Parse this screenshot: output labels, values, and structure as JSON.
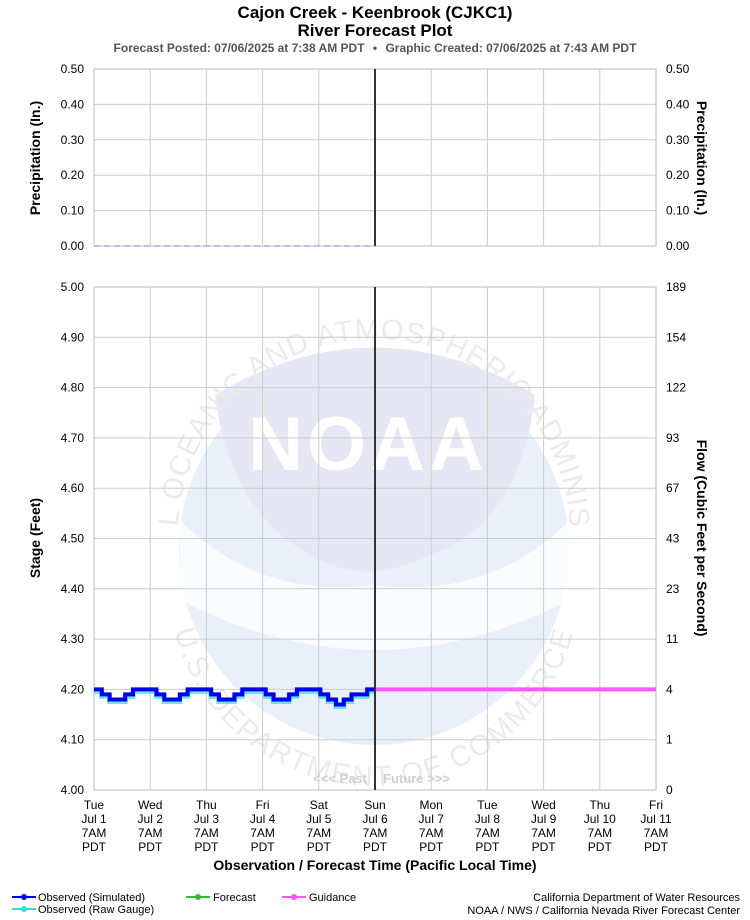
{
  "header": {
    "title": "Cajon Creek - Keenbrook (CJKC1)",
    "subtitle": "River Forecast Plot",
    "posted": "Forecast Posted: 07/06/2025 at 7:38 AM PDT",
    "separator": "•",
    "created": "Graphic Created: 07/06/2025 at 7:43 AM PDT"
  },
  "watermark": {
    "logo_text": "NOAA",
    "ring_top": "NATIONAL OCEANIC AND ATMOSPHERIC ADMINISTRATION",
    "ring_bottom": "U.S. DEPARTMENT OF COMMERCE"
  },
  "markers": {
    "past": "<<< Past",
    "future": "Future >>>"
  },
  "x_axis": {
    "label": "Observation / Forecast Time (Pacific Local Time)",
    "ticks": [
      {
        "day": "Tue",
        "date": "Jul 1",
        "time": "7AM",
        "tz": "PDT"
      },
      {
        "day": "Wed",
        "date": "Jul 2",
        "time": "7AM",
        "tz": "PDT"
      },
      {
        "day": "Thu",
        "date": "Jul 3",
        "time": "7AM",
        "tz": "PDT"
      },
      {
        "day": "Fri",
        "date": "Jul 4",
        "time": "7AM",
        "tz": "PDT"
      },
      {
        "day": "Sat",
        "date": "Jul 5",
        "time": "7AM",
        "tz": "PDT"
      },
      {
        "day": "Sun",
        "date": "Jul 6",
        "time": "7AM",
        "tz": "PDT"
      },
      {
        "day": "Mon",
        "date": "Jul 7",
        "time": "7AM",
        "tz": "PDT"
      },
      {
        "day": "Tue",
        "date": "Jul 8",
        "time": "7AM",
        "tz": "PDT"
      },
      {
        "day": "Wed",
        "date": "Jul 9",
        "time": "7AM",
        "tz": "PDT"
      },
      {
        "day": "Thu",
        "date": "Jul 10",
        "time": "7AM",
        "tz": "PDT"
      },
      {
        "day": "Fri",
        "date": "Jul 11",
        "time": "7AM",
        "tz": "PDT"
      }
    ]
  },
  "legend": {
    "observed_sim": "Observed (Simulated)",
    "observed_raw": "Observed (Raw Gauge)",
    "forecast": "Forecast",
    "guidance": "Guidance"
  },
  "credits": {
    "line1": "California Department of Water Resources",
    "line2": "NOAA / NWS / California Nevada River Forecast Center"
  },
  "colors": {
    "observed_sim": "#0000ee",
    "observed_raw": "#33dddd",
    "forecast": "#33bb33",
    "guidance": "#ff55ff",
    "precip": "#aaaaee",
    "grid": "#cccccc",
    "now_line": "#333333"
  },
  "chart_data": [
    {
      "type": "line",
      "xlabel": "",
      "ylabel": "Precipitation (In.)",
      "ylabel_right": "Precipitation (In.)",
      "ylim": [
        0,
        0.5
      ],
      "y_ticks": [
        "0.00",
        "0.10",
        "0.20",
        "0.30",
        "0.40",
        "0.50"
      ],
      "grid": true,
      "now": "Jul 6 7AM",
      "series": [
        {
          "x_start": "Jul 1 7AM",
          "x_end": "Jul 6 7AM",
          "values": [
            0.0
          ]
        }
      ]
    },
    {
      "type": "line",
      "xlabel": "Observation / Forecast Time (Pacific Local Time)",
      "ylabel": "Stage (Feet)",
      "ylabel_right": "Flow (Cubic Feet per Second)",
      "ylim": [
        4.0,
        5.0
      ],
      "y_ticks": [
        "4.00",
        "4.10",
        "4.20",
        "4.30",
        "4.40",
        "4.50",
        "4.60",
        "4.70",
        "4.80",
        "4.90",
        "5.00"
      ],
      "y2_ticks": [
        "0",
        "1",
        "4",
        "11",
        "23",
        "43",
        "67",
        "93",
        "122",
        "154",
        "189"
      ],
      "grid": true,
      "legend": "bottom-left",
      "now": "Jul 6 7AM",
      "series": [
        {
          "name": "Observed (Simulated)",
          "x_start": "Jul 1 7AM",
          "x_end": "Jul 6 7AM",
          "values": [
            4.2,
            4.19,
            4.18,
            4.18,
            4.19,
            4.2,
            4.2,
            4.2,
            4.19,
            4.18,
            4.18,
            4.19,
            4.2,
            4.2,
            4.2,
            4.19,
            4.18,
            4.18,
            4.19,
            4.2,
            4.2,
            4.2,
            4.19,
            4.18,
            4.18,
            4.19,
            4.2,
            4.2,
            4.2,
            4.19,
            4.18,
            4.17,
            4.18,
            4.19,
            4.19,
            4.2
          ]
        },
        {
          "name": "Guidance",
          "x_start": "Jul 6 7AM",
          "x_end": "Jul 11 7AM",
          "values": [
            4.2,
            4.2
          ]
        }
      ]
    }
  ]
}
